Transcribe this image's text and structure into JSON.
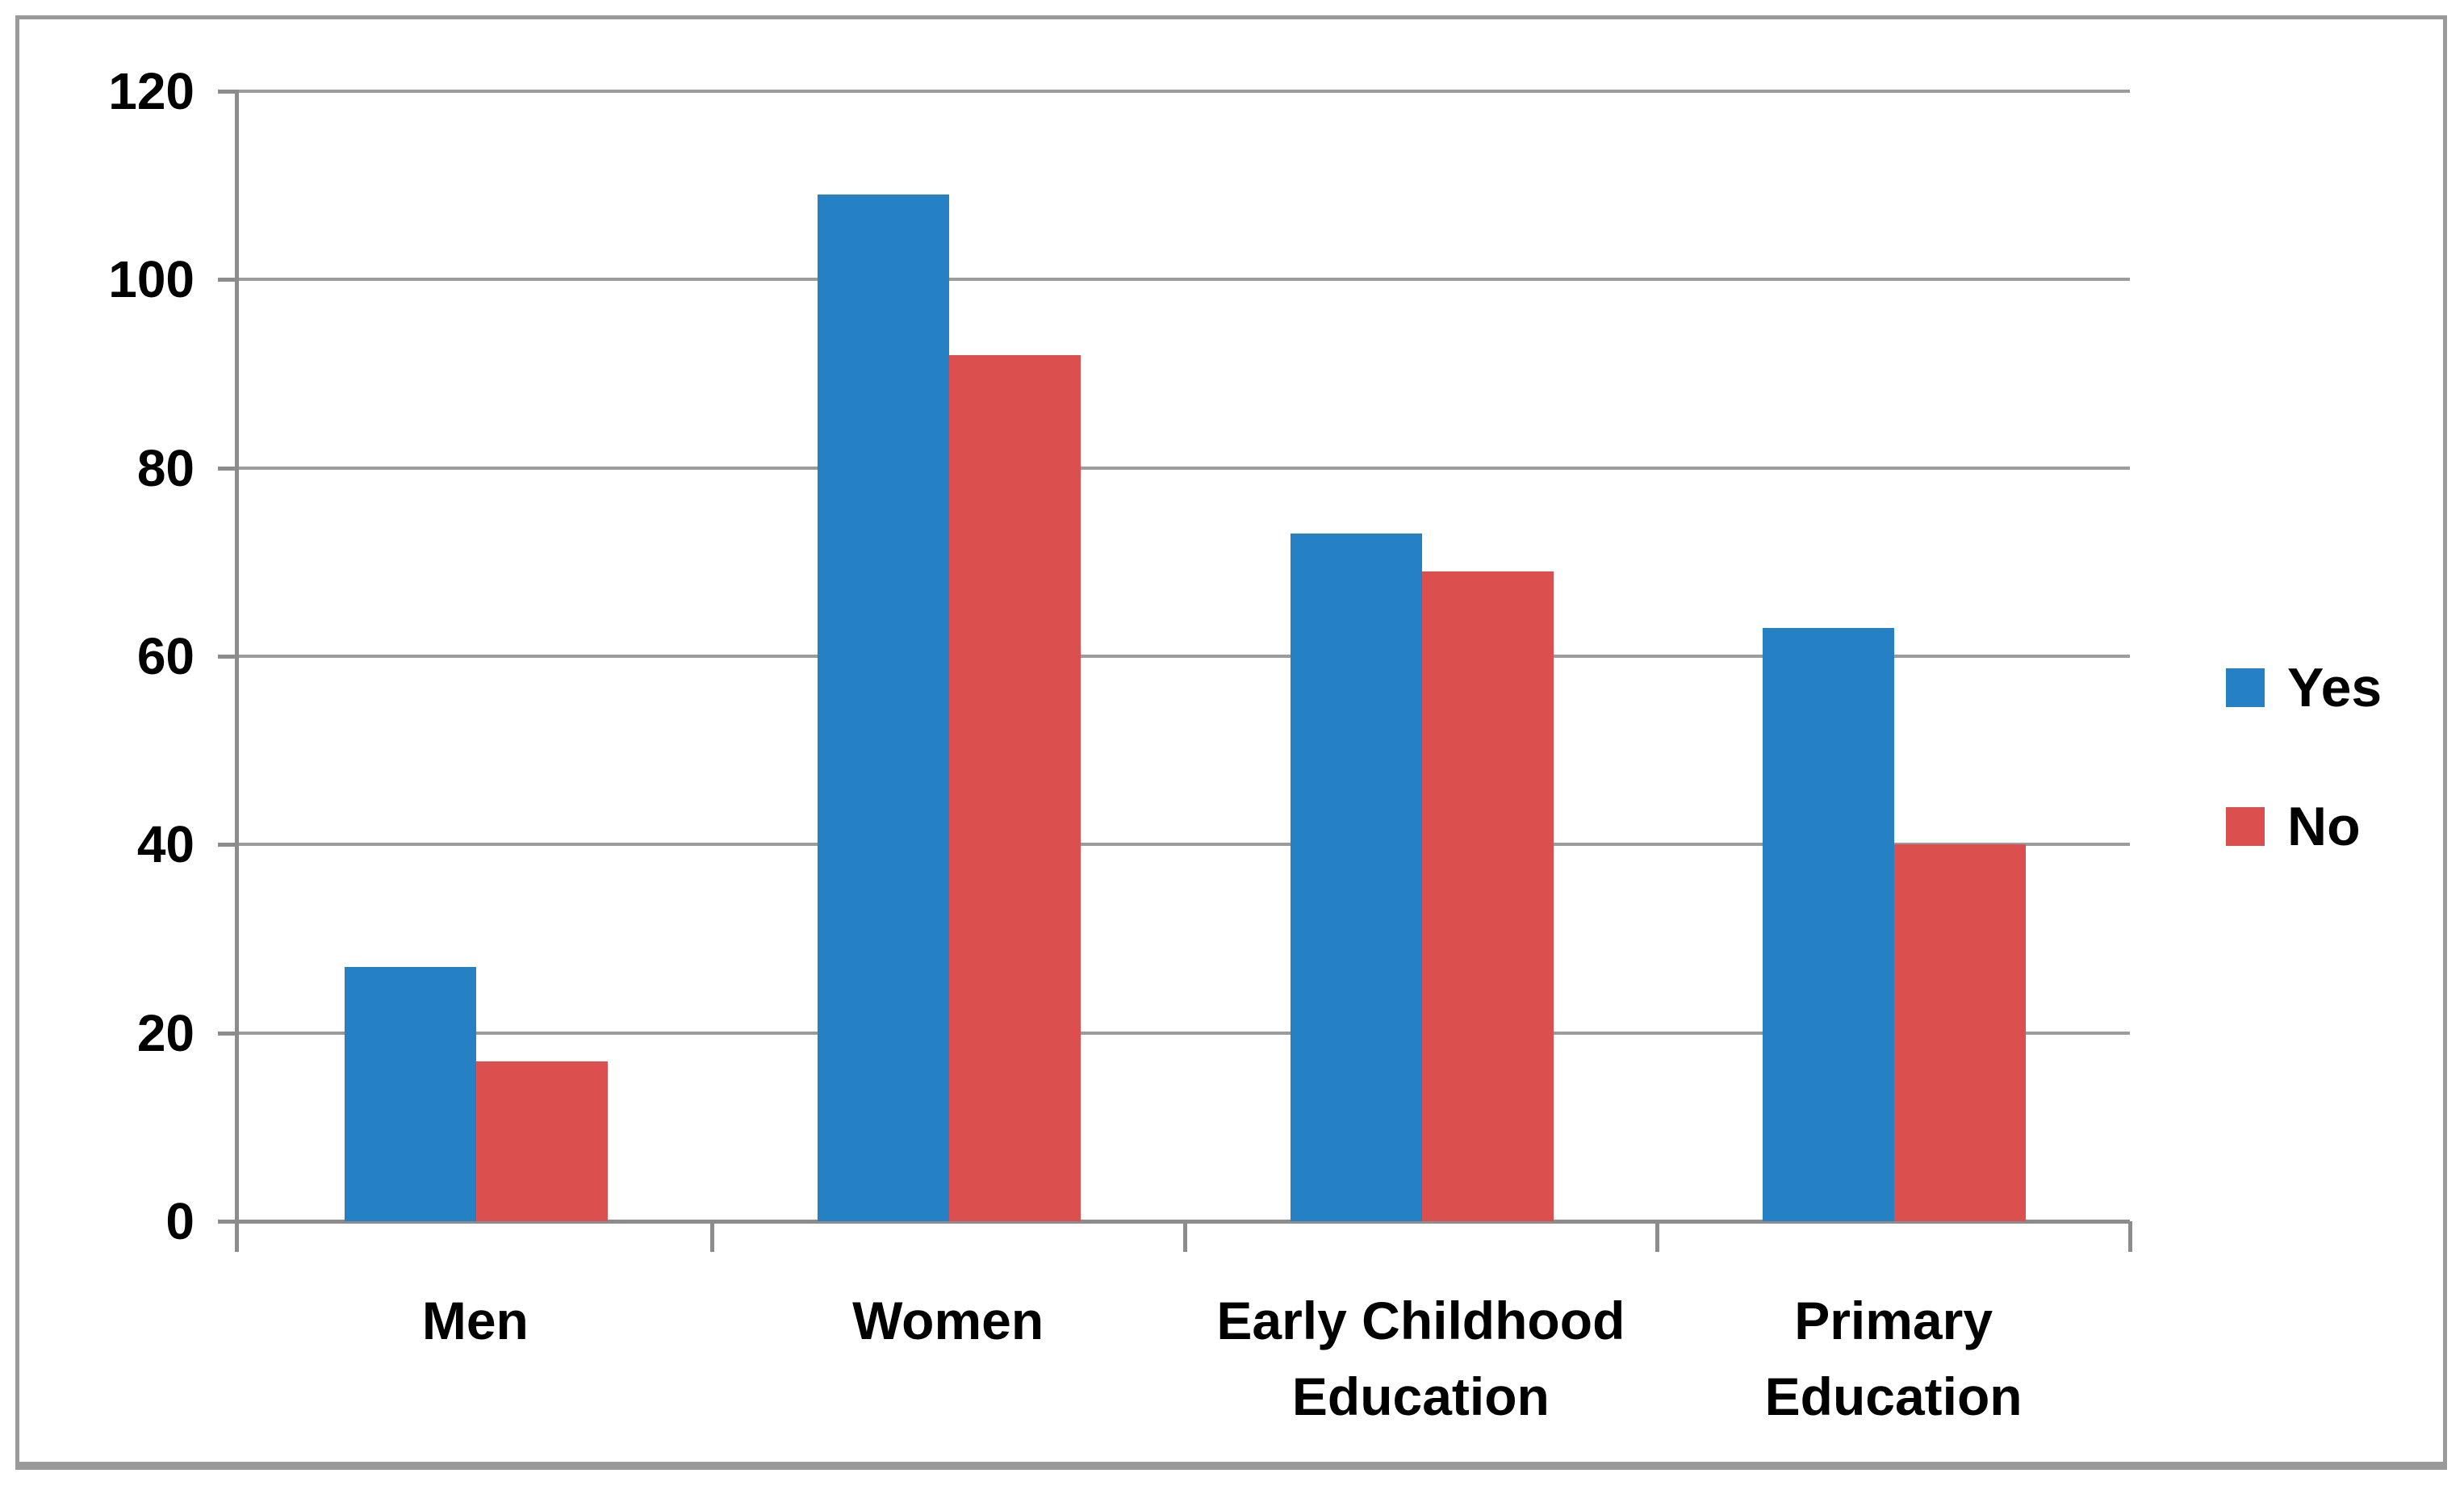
{
  "chart_data": {
    "type": "bar",
    "title": "",
    "xlabel": "",
    "ylabel": "",
    "categories": [
      "Men",
      "Women",
      "Early Childhood Education",
      "Primary Education"
    ],
    "series": [
      {
        "name": "Yes",
        "color": "#2581c4",
        "values": [
          27,
          109,
          73,
          63
        ]
      },
      {
        "name": "No",
        "color": "#db4f4e",
        "values": [
          17,
          92,
          69,
          40
        ]
      }
    ],
    "ylim": [
      0,
      120
    ],
    "y_ticks": [
      0,
      20,
      40,
      60,
      80,
      100,
      120
    ],
    "grid": true,
    "legend_position": "right-middle"
  },
  "colors": {
    "gridline": "#9c9c9c",
    "axis": "#8c8c8c",
    "frame_border": "#9a9a9a",
    "background": "#ffffff",
    "text": "#000000"
  }
}
